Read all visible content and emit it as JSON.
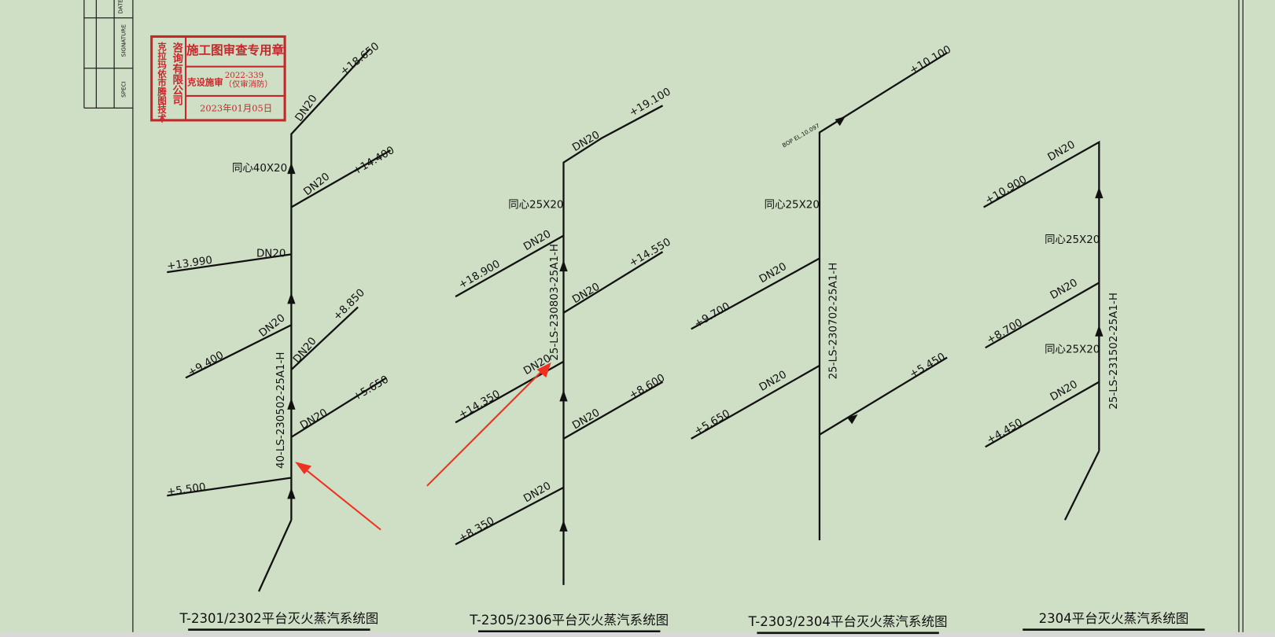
{
  "stamp": {
    "title": "施工图审查专用章",
    "number": "2022-339",
    "dept": "克设施审",
    "scope": "（仅审消防）",
    "date": "2023年01月05日",
    "company_a": "克拉玛依市腾图技术",
    "company_b": "咨询有限公司"
  },
  "title_block": [
    "DATE",
    "SIGNATURE",
    "SPECI"
  ],
  "diagrams": [
    {
      "title": "T-2301/2302平台灭火蒸汽系统图",
      "line": "40-LS-230502-25A1-H",
      "labels": [
        "+18.650",
        "DN20",
        "同心40X20",
        "DN20",
        "+14.400",
        "+13.990",
        "DN20",
        "DN20",
        "+9.400",
        "DN20",
        "+8.850",
        "DN20",
        "+5.650",
        "+5.500"
      ]
    },
    {
      "title": "T-2305/2306平台灭火蒸汽系统图",
      "line": "25-LS-230803-25A1-H",
      "labels": [
        "DN20",
        "+19.100",
        "同心25X20",
        "DN20",
        "+18.900",
        "DN20",
        "+14.550",
        "DN20",
        "+14.350",
        "DN20",
        "+8.600",
        "DN20",
        "+8.350"
      ]
    },
    {
      "title": "T-2303/2304平台灭火蒸汽系统图",
      "line": "25-LS-230702-25A1-H",
      "labels": [
        "+10.100",
        "BOP EL.10.097",
        "同心25X20",
        "DN20",
        "+9.700",
        "DN20",
        "+5.650",
        "+5.450"
      ]
    },
    {
      "title": "2304平台灭火蒸汽系统图",
      "line": "25-LS-231502-25A1-H",
      "labels": [
        "DN20",
        "+10.900",
        "同心25X20",
        "DN20",
        "+8.700",
        "同心25X20",
        "DN20",
        "+4.450"
      ]
    }
  ]
}
